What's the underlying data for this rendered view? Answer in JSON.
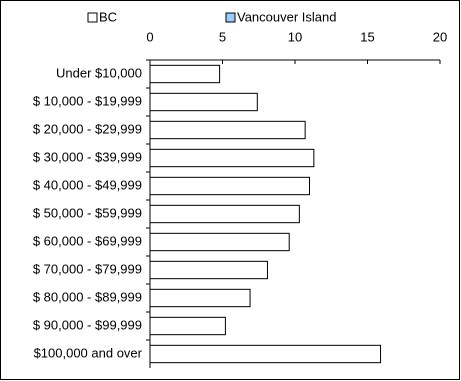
{
  "chart_data": {
    "type": "bar",
    "orientation": "horizontal",
    "categories": [
      "Under $10,000",
      "$  10,000 - $19,999",
      "$  20,000 - $29,999",
      "$  30,000 - $39,999",
      "$  40,000 - $49,999",
      "$  50,000 - $59,999",
      "$  60,000 - $69,999",
      "$  70,000 - $79,999",
      "$  80,000 - $89,999",
      "$  90,000 - $99,999",
      "$100,000 and over"
    ],
    "series": [
      {
        "name": "BC",
        "color": "#ffffff",
        "values": [
          4.8,
          7.4,
          10.7,
          11.3,
          11.0,
          10.3,
          9.6,
          8.1,
          6.9,
          5.2,
          15.9
        ]
      },
      {
        "name": "Vancouver Island",
        "color": "#99ccff",
        "values": [
          null,
          null,
          null,
          null,
          null,
          null,
          null,
          null,
          null,
          null,
          null
        ]
      }
    ],
    "xlim": [
      0,
      20
    ],
    "xticks": [
      0,
      5,
      10,
      15,
      20
    ],
    "legend": "top"
  }
}
